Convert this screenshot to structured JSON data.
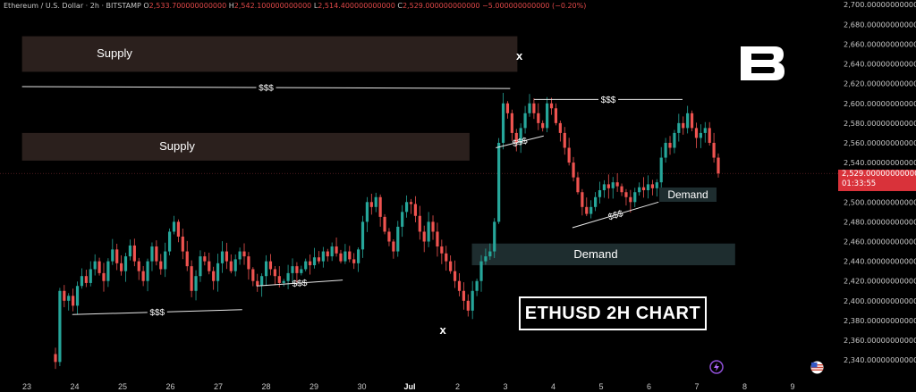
{
  "header": {
    "symbol": "Ethereum / U.S. Dollar · 2h · BITSTAMP",
    "o_key": "O",
    "o_val": "2,533.700000000000",
    "h_key": "H",
    "h_val": "2,542.100000000000",
    "l_key": "L",
    "l_val": "2,514.400000000000",
    "c_key": "C",
    "c_val": "2,529.000000000000",
    "change": "−5.000000000000 (−0.20%)"
  },
  "price_tag": {
    "price": "2,529.000000000000",
    "countdown": "01:33:55"
  },
  "title": "ETHUSD 2H CHART",
  "logo_icon": "brand-b-logo-icon",
  "chart_data": {
    "type": "candlestick",
    "y_axis_ticks": [
      "2,700.000000000000",
      "2,680.000000000000",
      "2,660.000000000000",
      "2,640.000000000000",
      "2,620.000000000000",
      "2,600.000000000000",
      "2,580.000000000000",
      "2,560.000000000000",
      "2,540.000000000000",
      "2,520.000000000000",
      "2,500.000000000000",
      "2,480.000000000000",
      "2,460.000000000000",
      "2,440.000000000000",
      "2,420.000000000000",
      "2,400.000000000000",
      "2,380.000000000000",
      "2,360.000000000000",
      "2,340.000000000000"
    ],
    "y_tick_values": [
      2700,
      2680,
      2660,
      2640,
      2620,
      2600,
      2580,
      2560,
      2540,
      2520,
      2500,
      2480,
      2460,
      2440,
      2420,
      2400,
      2380,
      2360,
      2340
    ],
    "x_axis_ticks": [
      "23",
      "24",
      "25",
      "26",
      "27",
      "28",
      "29",
      "30",
      "Jul",
      "2",
      "3",
      "4",
      "5",
      "6",
      "7",
      "8",
      "9"
    ],
    "ylim": [
      2332,
      2702
    ],
    "last_price": 2529.0,
    "zones": [
      {
        "label": "Supply",
        "type": "supply",
        "from_day": 22.9,
        "to_day": 3.25,
        "low": 2632,
        "high": 2668
      },
      {
        "label": "Supply",
        "type": "supply",
        "from_day": 22.9,
        "to_day": 2.25,
        "low": 2542,
        "high": 2570
      },
      {
        "label": "Demand",
        "type": "demand",
        "from_day": 2.3,
        "to_day": 7.8,
        "low": 2436,
        "high": 2458
      },
      {
        "label": "Demand",
        "type": "demand",
        "from_day": 6.2,
        "to_day": 7.4,
        "low": 2505,
        "high": 2518
      }
    ],
    "liquidity_lines": [
      {
        "label": "$$$",
        "d1": 23.95,
        "p1": 2386,
        "d2": 27.5,
        "p2": 2391
      },
      {
        "label": "$$$",
        "d1": 27.8,
        "p1": 2415,
        "d2": 29.6,
        "p2": 2421
      },
      {
        "label": "$$$",
        "d1": 22.9,
        "p1": 2617,
        "d2": 3.1,
        "p2": 2615
      },
      {
        "label": "$$$",
        "d1": 3.6,
        "p1": 2604,
        "d2": 6.7,
        "p2": 2604
      },
      {
        "label": "$$$",
        "d1": 2.8,
        "p1": 2555,
        "d2": 3.8,
        "p2": 2567
      },
      {
        "label": "$$$",
        "d1": 4.4,
        "p1": 2474,
        "d2": 6.2,
        "p2": 2500
      }
    ],
    "swing_markers": [
      {
        "label": "x",
        "day": 3.3,
        "price": 2648
      },
      {
        "label": "x",
        "day": 1.7,
        "price": 2370
      }
    ],
    "closes": [
      2338,
      2410,
      2400,
      2405,
      2395,
      2415,
      2425,
      2418,
      2432,
      2440,
      2428,
      2420,
      2440,
      2452,
      2438,
      2430,
      2445,
      2456,
      2440,
      2430,
      2420,
      2440,
      2455,
      2440,
      2432,
      2450,
      2470,
      2480,
      2465,
      2450,
      2435,
      2410,
      2425,
      2445,
      2440,
      2430,
      2420,
      2438,
      2450,
      2440,
      2430,
      2442,
      2450,
      2445,
      2432,
      2420,
      2415,
      2425,
      2440,
      2432,
      2425,
      2418,
      2420,
      2428,
      2435,
      2428,
      2432,
      2440,
      2436,
      2444,
      2440,
      2450,
      2445,
      2455,
      2448,
      2440,
      2450,
      2442,
      2438,
      2452,
      2480,
      2500,
      2495,
      2505,
      2485,
      2470,
      2460,
      2450,
      2475,
      2490,
      2500,
      2498,
      2486,
      2470,
      2460,
      2480,
      2470,
      2455,
      2448,
      2440,
      2430,
      2420,
      2410,
      2400,
      2390,
      2410,
      2420,
      2440,
      2445,
      2450,
      2480,
      2560,
      2600,
      2590,
      2570,
      2560,
      2575,
      2590,
      2600,
      2590,
      2580,
      2575,
      2600,
      2595,
      2580,
      2570,
      2555,
      2540,
      2525,
      2510,
      2495,
      2488,
      2495,
      2505,
      2512,
      2518,
      2514,
      2520,
      2516,
      2510,
      2505,
      2500,
      2510,
      2515,
      2512,
      2518,
      2514,
      2520,
      2545,
      2560,
      2555,
      2570,
      2580,
      2575,
      2590,
      2575,
      2565,
      2570,
      2575,
      2560,
      2545,
      2529
    ]
  }
}
